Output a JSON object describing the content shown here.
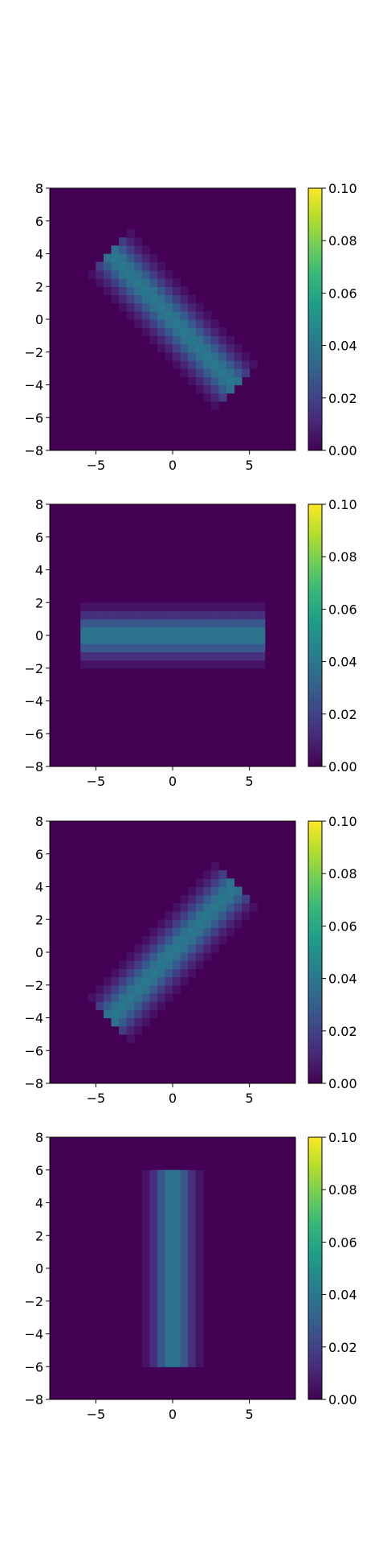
{
  "figure": {
    "layout": "vertical-stack-of-4",
    "colormap": "viridis",
    "colormap_stops": [
      "#440154",
      "#482878",
      "#3e4989",
      "#31688e",
      "#26828e",
      "#1f9e89",
      "#35b779",
      "#6ece58",
      "#b5de2b",
      "#fde725"
    ]
  },
  "chart_data": [
    {
      "type": "heatmap",
      "title": "",
      "xlabel": "",
      "ylabel": "",
      "xlim": [
        -8,
        8
      ],
      "ylim": [
        -8,
        8
      ],
      "x_ticks": [
        {
          "v": -5,
          "label": "−5"
        },
        {
          "v": 0,
          "label": "0"
        },
        {
          "v": 5,
          "label": "5"
        }
      ],
      "y_ticks": [
        {
          "v": 8,
          "label": "8"
        },
        {
          "v": 6,
          "label": "6"
        },
        {
          "v": 4,
          "label": "4"
        },
        {
          "v": 2,
          "label": "2"
        },
        {
          "v": 0,
          "label": "0"
        },
        {
          "v": -2,
          "label": "−2"
        },
        {
          "v": -4,
          "label": "−4"
        },
        {
          "v": -6,
          "label": "−6"
        },
        {
          "v": -8,
          "label": "−8"
        }
      ],
      "grid": false,
      "background_value": 0.0,
      "band": {
        "angle_deg": 135,
        "half_length": 6,
        "half_width": 2,
        "peak_value": 0.04
      },
      "colorbar": {
        "min": 0.0,
        "max": 0.1,
        "ticks": [
          "0.00",
          "0.02",
          "0.04",
          "0.06",
          "0.08",
          "0.10"
        ]
      }
    },
    {
      "type": "heatmap",
      "title": "",
      "xlabel": "",
      "ylabel": "",
      "xlim": [
        -8,
        8
      ],
      "ylim": [
        -8,
        8
      ],
      "x_ticks": [
        {
          "v": -5,
          "label": "−5"
        },
        {
          "v": 0,
          "label": "0"
        },
        {
          "v": 5,
          "label": "5"
        }
      ],
      "y_ticks": [
        {
          "v": 8,
          "label": "8"
        },
        {
          "v": 6,
          "label": "6"
        },
        {
          "v": 4,
          "label": "4"
        },
        {
          "v": 2,
          "label": "2"
        },
        {
          "v": 0,
          "label": "0"
        },
        {
          "v": -2,
          "label": "−2"
        },
        {
          "v": -4,
          "label": "−4"
        },
        {
          "v": -6,
          "label": "−6"
        },
        {
          "v": -8,
          "label": "−8"
        }
      ],
      "grid": false,
      "background_value": 0.0,
      "band": {
        "angle_deg": 0,
        "half_length": 6,
        "half_width": 2,
        "peak_value": 0.04
      },
      "colorbar": {
        "min": 0.0,
        "max": 0.1,
        "ticks": [
          "0.00",
          "0.02",
          "0.04",
          "0.06",
          "0.08",
          "0.10"
        ]
      }
    },
    {
      "type": "heatmap",
      "title": "",
      "xlabel": "",
      "ylabel": "",
      "xlim": [
        -8,
        8
      ],
      "ylim": [
        -8,
        8
      ],
      "x_ticks": [
        {
          "v": -5,
          "label": "−5"
        },
        {
          "v": 0,
          "label": "0"
        },
        {
          "v": 5,
          "label": "5"
        }
      ],
      "y_ticks": [
        {
          "v": 8,
          "label": "8"
        },
        {
          "v": 6,
          "label": "6"
        },
        {
          "v": 4,
          "label": "4"
        },
        {
          "v": 2,
          "label": "2"
        },
        {
          "v": 0,
          "label": "0"
        },
        {
          "v": -2,
          "label": "−2"
        },
        {
          "v": -4,
          "label": "−4"
        },
        {
          "v": -6,
          "label": "−6"
        },
        {
          "v": -8,
          "label": "−8"
        }
      ],
      "grid": false,
      "background_value": 0.0,
      "band": {
        "angle_deg": 45,
        "half_length": 6,
        "half_width": 2,
        "peak_value": 0.04
      },
      "colorbar": {
        "min": 0.0,
        "max": 0.1,
        "ticks": [
          "0.00",
          "0.02",
          "0.04",
          "0.06",
          "0.08",
          "0.10"
        ]
      }
    },
    {
      "type": "heatmap",
      "title": "",
      "xlabel": "",
      "ylabel": "",
      "xlim": [
        -8,
        8
      ],
      "ylim": [
        -8,
        8
      ],
      "x_ticks": [
        {
          "v": -5,
          "label": "−5"
        },
        {
          "v": 0,
          "label": "0"
        },
        {
          "v": 5,
          "label": "5"
        }
      ],
      "y_ticks": [
        {
          "v": 8,
          "label": "8"
        },
        {
          "v": 6,
          "label": "6"
        },
        {
          "v": 4,
          "label": "4"
        },
        {
          "v": 2,
          "label": "2"
        },
        {
          "v": 0,
          "label": "0"
        },
        {
          "v": -2,
          "label": "−2"
        },
        {
          "v": -4,
          "label": "−4"
        },
        {
          "v": -6,
          "label": "−6"
        },
        {
          "v": -8,
          "label": "−8"
        }
      ],
      "grid": false,
      "background_value": 0.0,
      "band": {
        "angle_deg": 90,
        "half_length": 6,
        "half_width": 2,
        "peak_value": 0.04
      },
      "colorbar": {
        "min": 0.0,
        "max": 0.1,
        "ticks": [
          "0.00",
          "0.02",
          "0.04",
          "0.06",
          "0.08",
          "0.10"
        ]
      }
    }
  ]
}
